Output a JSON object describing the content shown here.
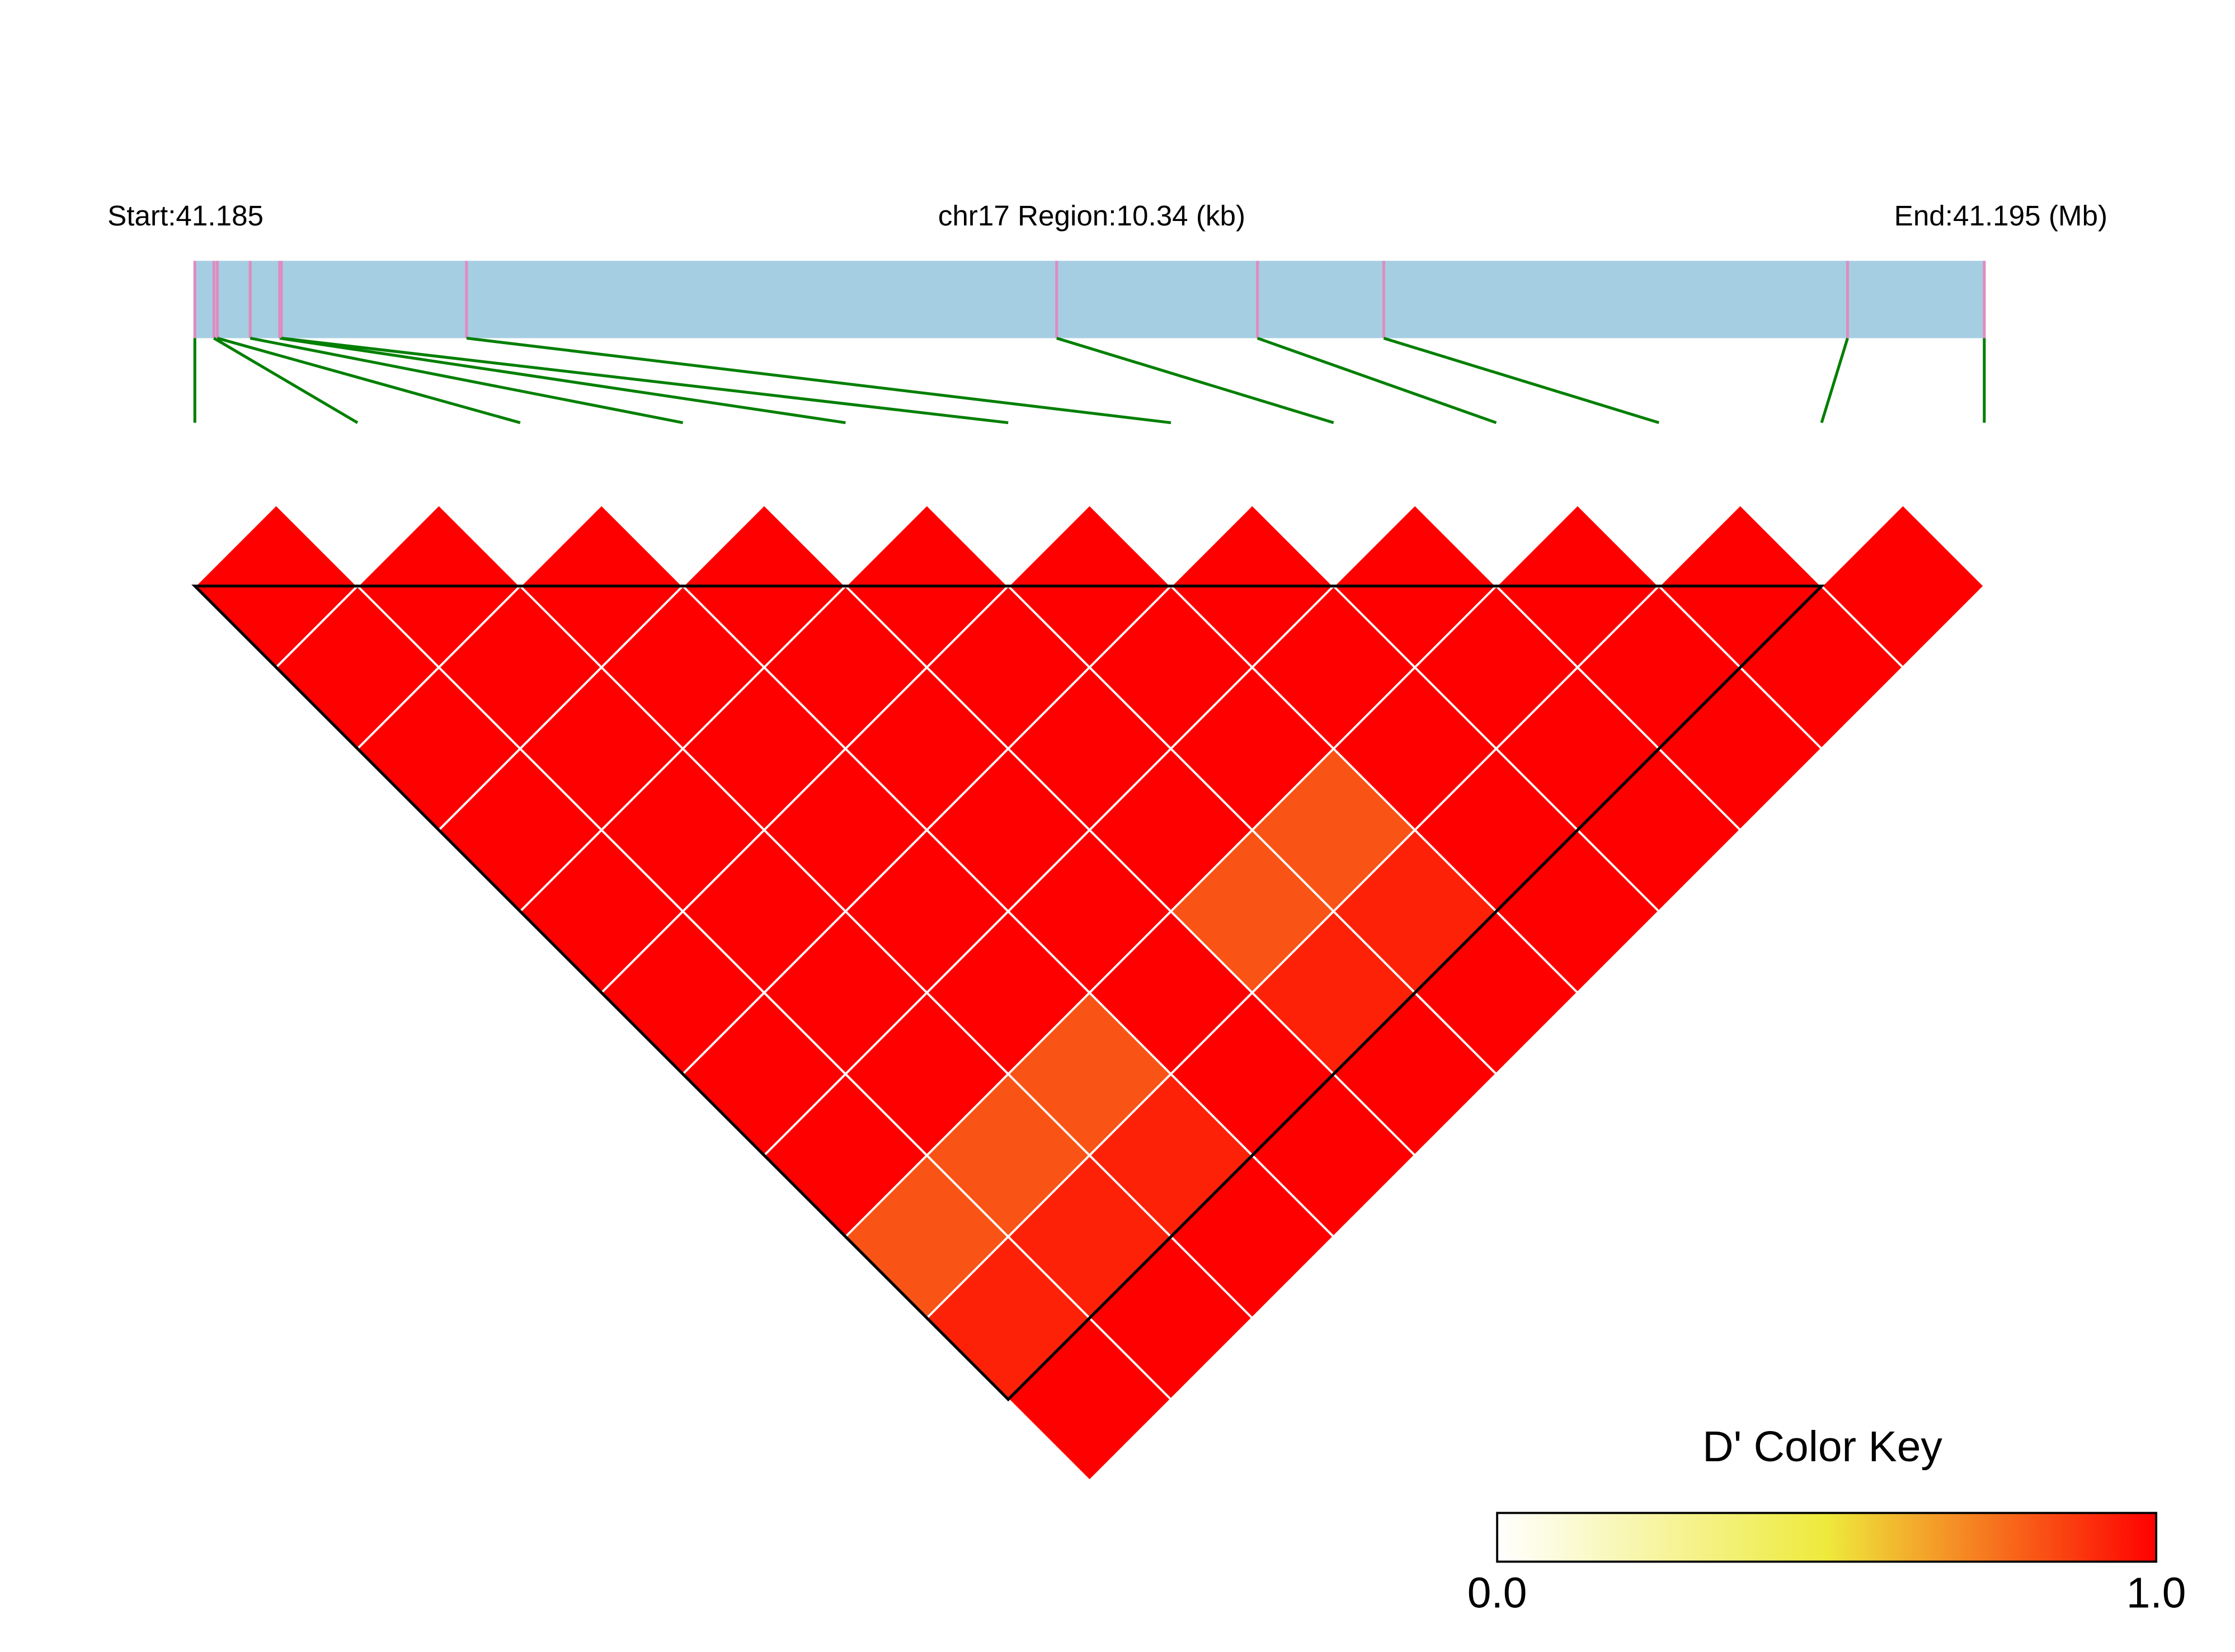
{
  "chart_data": {
    "type": "ld-heatmap",
    "start_label": "Start:41.185",
    "region_label": "chr17 Region:10.34 (kb)",
    "end_label": "End:41.195 (Mb)",
    "snp_positions_kb": [
      0,
      0.11,
      0.13,
      0.32,
      0.49,
      0.5,
      1.57,
      4.98,
      6.14,
      6.87,
      9.55,
      10.34
    ],
    "xlim": [
      0,
      10.34
    ],
    "d_prime": [
      [
        1,
        1,
        1,
        1,
        1,
        1,
        1,
        1,
        0.82,
        0.93,
        1
      ],
      [
        1,
        1,
        1,
        1,
        1,
        1,
        1,
        0.82,
        0.93,
        1
      ],
      [
        1,
        1,
        1,
        1,
        1,
        1,
        0.82,
        0.93,
        1
      ],
      [
        1,
        1,
        1,
        1,
        1,
        1,
        1,
        1
      ],
      [
        1,
        1,
        1,
        1,
        0.82,
        0.93,
        1
      ],
      [
        1,
        1,
        1,
        0.82,
        0.93,
        1
      ],
      [
        1,
        1,
        1,
        1,
        1
      ],
      [
        1,
        1,
        1,
        1
      ],
      [
        1,
        1,
        1
      ],
      [
        1,
        1
      ],
      [
        1
      ]
    ],
    "blocks": [
      [
        0,
        10
      ]
    ],
    "bar_color": "#a6cee3",
    "snp_line_color": "#e08cc0",
    "connector_color": "#007f00",
    "key_title": "D' Color Key",
    "key_colors": [
      "#ffffff",
      "#eeea3c",
      "#ff0000"
    ],
    "key_lim": [
      0,
      1
    ],
    "key_ticks": [
      {
        "value": 0,
        "label": "0.0"
      },
      {
        "value": 1,
        "label": "1.0"
      }
    ]
  }
}
